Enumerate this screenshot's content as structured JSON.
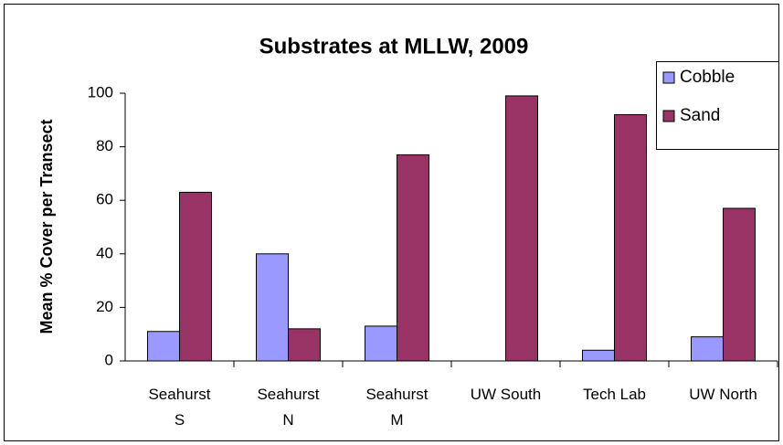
{
  "chart_data": {
    "type": "bar",
    "title": "Substrates at MLLW, 2009",
    "y_label": "Mean % Cover per Transect",
    "categories": [
      "Seahurst S",
      "Seahurst N",
      "Seahurst M",
      "UW South",
      "Tech Lab",
      "UW North"
    ],
    "series": [
      {
        "name": "Cobble",
        "color": "#9999ff",
        "values": [
          11,
          40,
          13,
          0,
          4,
          9
        ]
      },
      {
        "name": "Sand",
        "color": "#993366",
        "values": [
          63,
          12,
          77,
          99,
          92,
          57
        ]
      }
    ],
    "ylim": [
      0,
      100
    ],
    "yticks": [
      0,
      20,
      40,
      60,
      80,
      100
    ],
    "grid": false,
    "legend": "top-right"
  }
}
